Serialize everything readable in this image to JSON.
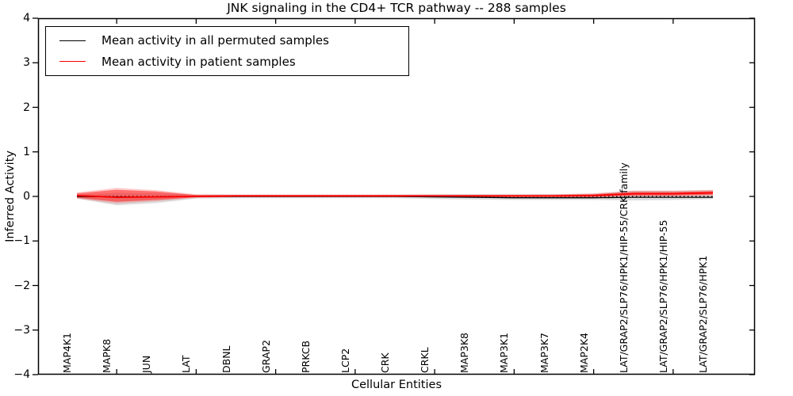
{
  "title": "JNK signaling in the CD4+ TCR pathway -- 288 samples",
  "axes": {
    "xlabel": "Cellular Entities",
    "ylabel": "Inferred Activity"
  },
  "legend": {
    "entries": [
      {
        "label": "Mean activity in all permuted samples",
        "color": "#000000"
      },
      {
        "label": "Mean activity in patient samples",
        "color": "#ff0000"
      }
    ]
  },
  "chart_data": {
    "type": "line",
    "title": "JNK signaling in the CD4+ TCR pathway -- 288 samples",
    "xlabel": "Cellular Entities",
    "ylabel": "Inferred Activity",
    "ylim": [
      -4,
      4
    ],
    "yticks": [
      -4,
      -3,
      -2,
      -1,
      0,
      1,
      2,
      3,
      4
    ],
    "xtick_positions": [
      1,
      3,
      5,
      7,
      9,
      11,
      13,
      15
    ],
    "grid": false,
    "legend_position": "upper-left",
    "categories": [
      "MAP4K1",
      "MAPK8",
      "JUN",
      "LAT",
      "DBNL",
      "GRAP2",
      "PRKCB",
      "LCP2",
      "CRK",
      "CRKL",
      "MAP3K8",
      "MAP3K1",
      "MAP3K7",
      "MAP2K4",
      "LAT/GRAP2/SLP76/HPK1/HIP-55/CRK family",
      "LAT/GRAP2/SLP76/HPK1/HIP-55",
      "LAT/GRAP2/SLP76/HPK1"
    ],
    "series": [
      {
        "name": "Mean activity in all permuted samples",
        "color": "#000000",
        "width": 1.3,
        "values": [
          0.0,
          -0.01,
          -0.01,
          0.0,
          0.0,
          0.0,
          0.0,
          0.0,
          0.0,
          -0.01,
          -0.02,
          -0.03,
          -0.03,
          -0.03,
          -0.02,
          -0.02,
          -0.02
        ]
      },
      {
        "name": "Mean activity in patient samples",
        "color": "#ff0000",
        "width": 1.8,
        "values": [
          0.02,
          -0.02,
          -0.01,
          0.0,
          0.01,
          0.01,
          0.01,
          0.01,
          0.01,
          0.01,
          0.01,
          0.01,
          0.01,
          0.02,
          0.06,
          0.06,
          0.08
        ]
      }
    ],
    "zero_line": {
      "y": 0,
      "style": "dotted",
      "color": "#000000"
    },
    "bands": [
      {
        "name": "permuted-confidence-band",
        "color": "rgba(100,100,100,0.22)",
        "upper": [
          0.04,
          0.08,
          0.07,
          0.04,
          0.04,
          0.04,
          0.04,
          0.04,
          0.04,
          0.05,
          0.05,
          0.05,
          0.05,
          0.06,
          0.13,
          0.13,
          0.14
        ],
        "lower": [
          -0.05,
          -0.2,
          -0.15,
          -0.05,
          -0.04,
          -0.04,
          -0.04,
          -0.04,
          -0.04,
          -0.06,
          -0.07,
          -0.08,
          -0.08,
          -0.08,
          -0.09,
          -0.08,
          -0.06
        ]
      },
      {
        "name": "patient-confidence-band-outer",
        "color": "rgba(255,50,50,0.25)",
        "upper": [
          0.09,
          0.19,
          0.14,
          0.05,
          0.04,
          0.04,
          0.04,
          0.04,
          0.04,
          0.04,
          0.04,
          0.04,
          0.05,
          0.07,
          0.13,
          0.13,
          0.15
        ],
        "lower": [
          -0.05,
          -0.16,
          -0.11,
          -0.03,
          -0.02,
          -0.02,
          -0.02,
          -0.02,
          -0.02,
          -0.02,
          -0.02,
          -0.02,
          -0.02,
          -0.03,
          0.0,
          0.0,
          0.01
        ]
      },
      {
        "name": "patient-confidence-band-inner",
        "color": "rgba(255,0,0,0.45)",
        "upper": [
          0.07,
          0.15,
          0.11,
          0.03,
          0.03,
          0.03,
          0.03,
          0.03,
          0.03,
          0.03,
          0.03,
          0.03,
          0.03,
          0.05,
          0.1,
          0.1,
          0.12
        ],
        "lower": [
          -0.03,
          -0.12,
          -0.08,
          -0.02,
          -0.01,
          -0.01,
          -0.01,
          -0.01,
          -0.01,
          -0.01,
          -0.01,
          -0.01,
          -0.01,
          -0.01,
          0.02,
          0.02,
          0.04
        ]
      }
    ]
  }
}
